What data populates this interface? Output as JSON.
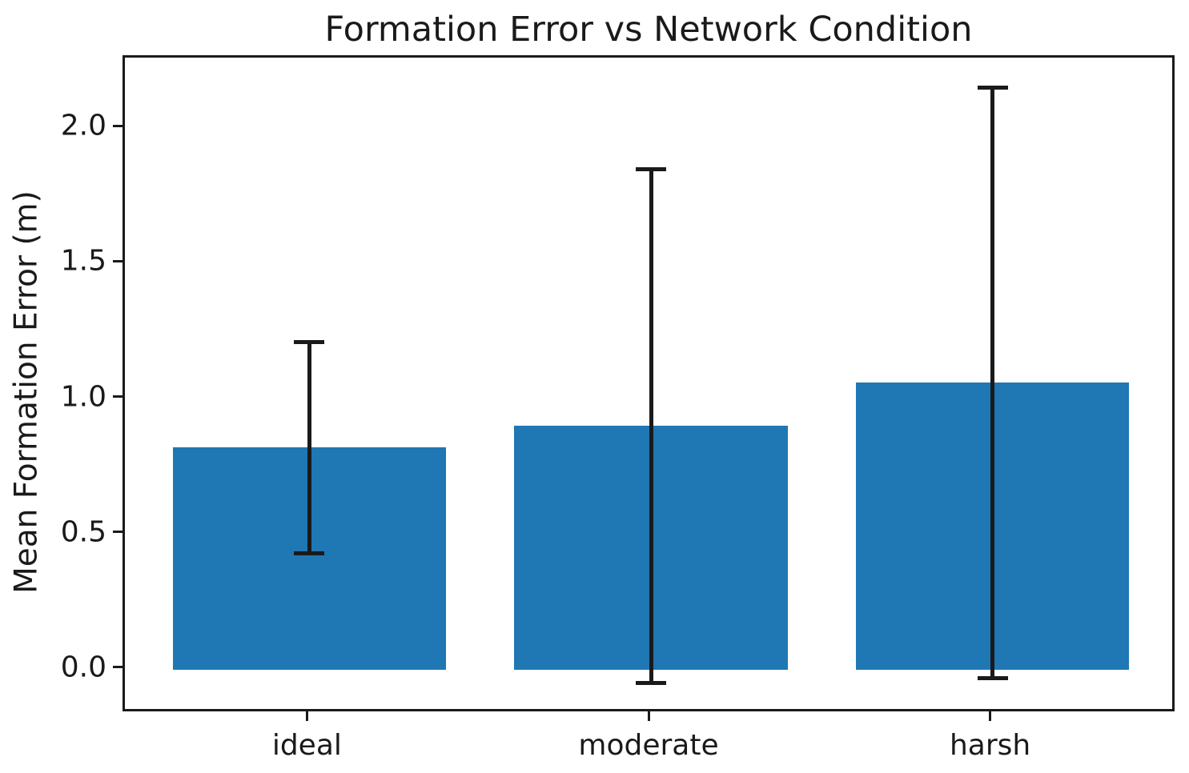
{
  "chart_data": {
    "type": "bar",
    "title": "Formation Error vs Network Condition",
    "xlabel": "",
    "ylabel": "Mean Formation Error (m)",
    "categories": [
      "ideal",
      "moderate",
      "harsh"
    ],
    "values": [
      0.82,
      0.9,
      1.06
    ],
    "errors": [
      0.39,
      0.95,
      1.09
    ],
    "error_caps": true,
    "yticks": [
      0.0,
      0.5,
      1.0,
      1.5,
      2.0
    ],
    "ylim": [
      -0.163,
      2.261
    ],
    "xlim": [
      -0.54,
      2.54
    ],
    "bar_width": 0.8,
    "bar_color": "#1f77b4",
    "errorbar_color": "#1a1a1a",
    "axis_color": "#1a1a1a",
    "grid": false,
    "legend": null
  }
}
